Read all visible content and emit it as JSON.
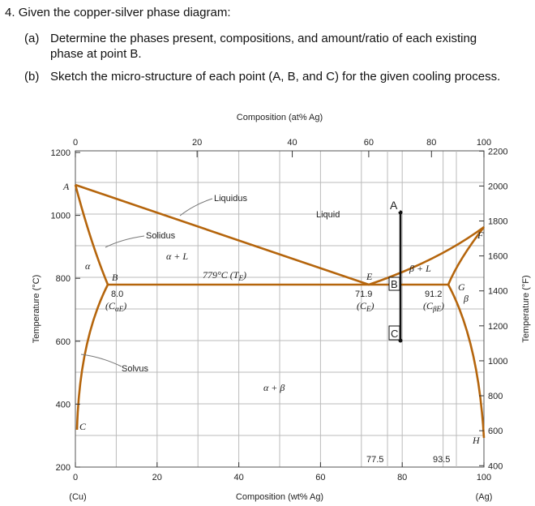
{
  "question": {
    "number": "4.",
    "text": "Given the copper-silver phase diagram:",
    "parts": [
      {
        "label": "(a)",
        "text": "Determine the phases present, compositions, and amount/ratio of each existing phase at point B."
      },
      {
        "label": "(b)",
        "text": "Sketch the micro-structure of each point (A, B, and C) for the given cooling process."
      }
    ]
  },
  "diagram": {
    "top_axis_title": "Composition (at% Ag)",
    "top_ticks": [
      0,
      20,
      40,
      60,
      80,
      100
    ],
    "bottom_axis_title": "Composition (wt% Ag)",
    "bottom_ticks": [
      0,
      20,
      40,
      60,
      80,
      100
    ],
    "left_axis_title": "Temperature (°C)",
    "left_ticks": [
      200,
      400,
      600,
      800,
      1000,
      1200
    ],
    "right_axis_title": "Temperature (°F)",
    "right_ticks": [
      400,
      600,
      800,
      1000,
      1200,
      1400,
      1600,
      1800,
      2000,
      2200
    ],
    "left_end": "(Cu)",
    "right_end": "(Ag)",
    "labels": {
      "liquidus": "Liquidus",
      "liquid": "Liquid",
      "solidus": "Solidus",
      "solvus": "Solvus",
      "alpha": "α",
      "alpha_l": "α + L",
      "beta_l": "β + L",
      "beta": "β",
      "alpha_beta": "α + β",
      "A": "A",
      "B": "B",
      "C": "C",
      "E": "E",
      "F": "F",
      "G": "G",
      "H": "H",
      "c_alpha": "8.0",
      "c_e": "71.9",
      "c_beta": "91.2",
      "x1": "77.5",
      "x2": "93.5",
      "point_A": "A",
      "point_B": "B",
      "point_C": "C"
    },
    "te": {
      "text": "779°C (T",
      "sub": "E",
      "tail": ")"
    },
    "cae": {
      "text": "(C",
      "sub": "αE",
      "tail": ")"
    },
    "ce": {
      "text": "(C",
      "sub": "E",
      "tail": ")"
    },
    "cbe": {
      "text": "(C",
      "sub": "βE",
      "tail": ")"
    }
  }
}
